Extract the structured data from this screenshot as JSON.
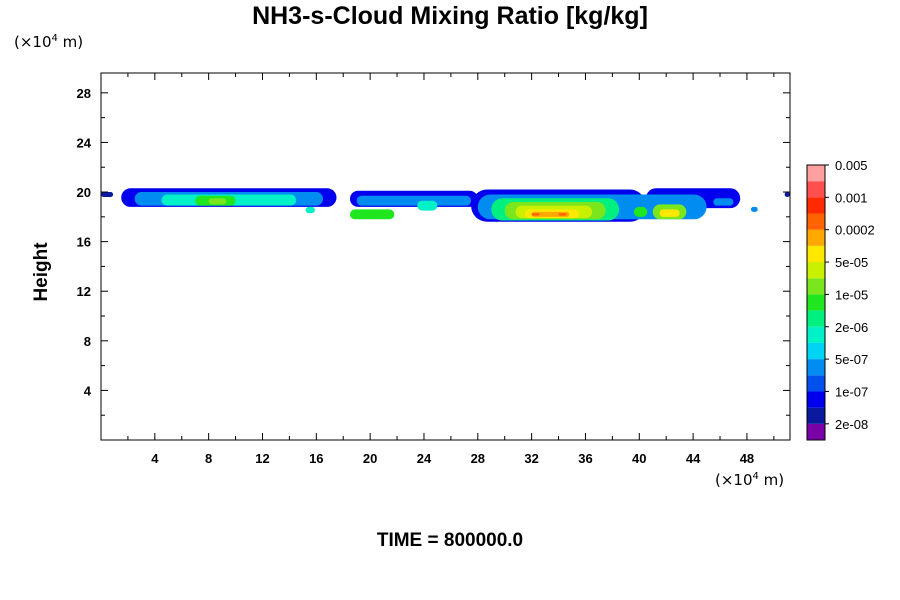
{
  "chart_data": {
    "type": "heatmap",
    "title": "NH3-s-Cloud Mixing Ratio [kg/kg]",
    "ylabel": "Height",
    "xlabel": "",
    "x_unit": {
      "prefix": "(×10",
      "exp": "4",
      "suffix": " m)"
    },
    "y_unit": {
      "prefix": "(×10",
      "exp": "4",
      "suffix": " m)"
    },
    "xlim": [
      0,
      51.2
    ],
    "ylim": [
      0,
      29.6
    ],
    "x_ticks": [
      4,
      8,
      12,
      16,
      20,
      24,
      28,
      32,
      36,
      40,
      44,
      48
    ],
    "y_ticks": [
      4,
      8,
      12,
      16,
      20,
      24,
      28
    ],
    "colorbar": {
      "colors": [
        "#7a00a8",
        "#0a1a9c",
        "#0000ee",
        "#0050ee",
        "#008cf0",
        "#00d4f5",
        "#00f0c8",
        "#00f080",
        "#20e620",
        "#7ae61e",
        "#c8f000",
        "#ffe800",
        "#ffa800",
        "#ff6400",
        "#ff2a00",
        "#ff5050",
        "#ffa0a0"
      ],
      "labels": [
        "2e-08",
        "1e-07",
        "5e-07",
        "2e-06",
        "1e-05",
        "5e-05",
        "0.0002",
        "0.001",
        "0.005"
      ]
    },
    "cloud_regions": [
      {
        "x0": 0.0,
        "x1": 0.9,
        "y0": 19.6,
        "y1": 20.0,
        "level": 1
      },
      {
        "x0": 1.5,
        "x1": 17.5,
        "y0": 18.8,
        "y1": 20.3,
        "level": 2
      },
      {
        "x0": 2.5,
        "x1": 16.5,
        "y0": 18.9,
        "y1": 20.0,
        "level": 4
      },
      {
        "x0": 4.5,
        "x1": 14.5,
        "y0": 18.9,
        "y1": 19.8,
        "level": 6
      },
      {
        "x0": 7.0,
        "x1": 10.0,
        "y0": 18.9,
        "y1": 19.7,
        "level": 8
      },
      {
        "x0": 8.0,
        "x1": 9.3,
        "y0": 19.0,
        "y1": 19.5,
        "level": 9
      },
      {
        "x0": 12.0,
        "x1": 14.0,
        "y0": 19.0,
        "y1": 19.6,
        "level": 6
      },
      {
        "x0": 15.2,
        "x1": 15.9,
        "y0": 18.3,
        "y1": 18.8,
        "level": 6
      },
      {
        "x0": 18.5,
        "x1": 28.0,
        "y0": 18.8,
        "y1": 20.1,
        "level": 2
      },
      {
        "x0": 19.0,
        "x1": 27.5,
        "y0": 18.9,
        "y1": 19.7,
        "level": 4
      },
      {
        "x0": 23.5,
        "x1": 25.0,
        "y0": 18.5,
        "y1": 19.3,
        "level": 6
      },
      {
        "x0": 18.5,
        "x1": 21.8,
        "y0": 17.8,
        "y1": 18.6,
        "level": 8
      },
      {
        "x0": 27.5,
        "x1": 40.5,
        "y0": 17.6,
        "y1": 20.2,
        "level": 2
      },
      {
        "x0": 40.5,
        "x1": 47.5,
        "y0": 18.7,
        "y1": 20.3,
        "level": 2
      },
      {
        "x0": 28.0,
        "x1": 45.0,
        "y0": 17.8,
        "y1": 19.8,
        "level": 4
      },
      {
        "x0": 29.0,
        "x1": 38.5,
        "y0": 17.7,
        "y1": 19.5,
        "level": 7
      },
      {
        "x0": 30.0,
        "x1": 37.5,
        "y0": 17.8,
        "y1": 19.2,
        "level": 9
      },
      {
        "x0": 30.8,
        "x1": 36.5,
        "y0": 17.9,
        "y1": 18.9,
        "level": 10
      },
      {
        "x0": 31.5,
        "x1": 35.5,
        "y0": 17.9,
        "y1": 18.6,
        "level": 11
      },
      {
        "x0": 32.0,
        "x1": 34.8,
        "y0": 18.0,
        "y1": 18.4,
        "level": 12
      },
      {
        "x0": 32.0,
        "x1": 32.6,
        "y0": 18.1,
        "y1": 18.3,
        "level": 13
      },
      {
        "x0": 34.0,
        "x1": 34.6,
        "y0": 18.1,
        "y1": 18.3,
        "level": 13
      },
      {
        "x0": 39.6,
        "x1": 40.6,
        "y0": 18.0,
        "y1": 18.8,
        "level": 8
      },
      {
        "x0": 41.0,
        "x1": 43.5,
        "y0": 17.8,
        "y1": 19.0,
        "level": 9
      },
      {
        "x0": 41.5,
        "x1": 43.0,
        "y0": 18.0,
        "y1": 18.6,
        "level": 11
      },
      {
        "x0": 45.5,
        "x1": 47.0,
        "y0": 18.9,
        "y1": 19.5,
        "level": 4
      },
      {
        "x0": 48.3,
        "x1": 48.8,
        "y0": 18.4,
        "y1": 18.8,
        "level": 4
      },
      {
        "x0": 50.8,
        "x1": 51.2,
        "y0": 19.6,
        "y1": 20.0,
        "level": 1
      }
    ]
  },
  "time_text": "TIME = 800000.0"
}
